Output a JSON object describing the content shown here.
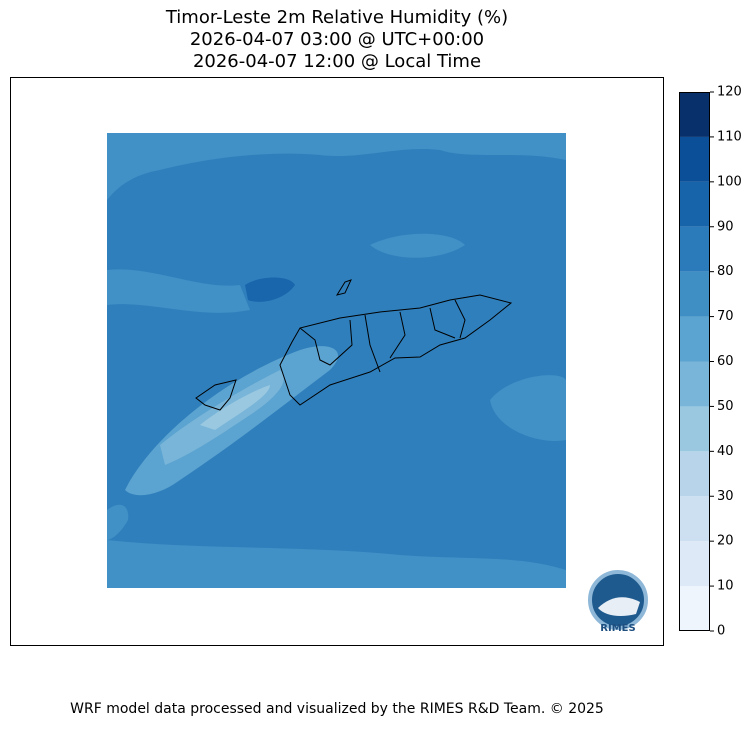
{
  "title": {
    "line1": "Timor-Leste 2m Relative Humidity (%)",
    "line2": "2026-04-07 03:00 @ UTC+00:00",
    "line3": "2026-04-07 12:00 @ Local Time"
  },
  "colorbar": {
    "ticks": [
      0,
      10,
      20,
      30,
      40,
      50,
      60,
      70,
      80,
      90,
      100,
      110,
      120
    ],
    "colors": [
      "#eef5fc",
      "#dde9f6",
      "#cde0f1",
      "#b7d4ea",
      "#9ac8e0",
      "#79b5d9",
      "#5ba3d0",
      "#3f8fc5",
      "#2b7bba",
      "#1764ab",
      "#0a4f97",
      "#08306b"
    ]
  },
  "logo": {
    "label": "RIMES"
  },
  "footer": "WRF model data processed and visualized by the RIMES R&D Team. © 2025"
}
